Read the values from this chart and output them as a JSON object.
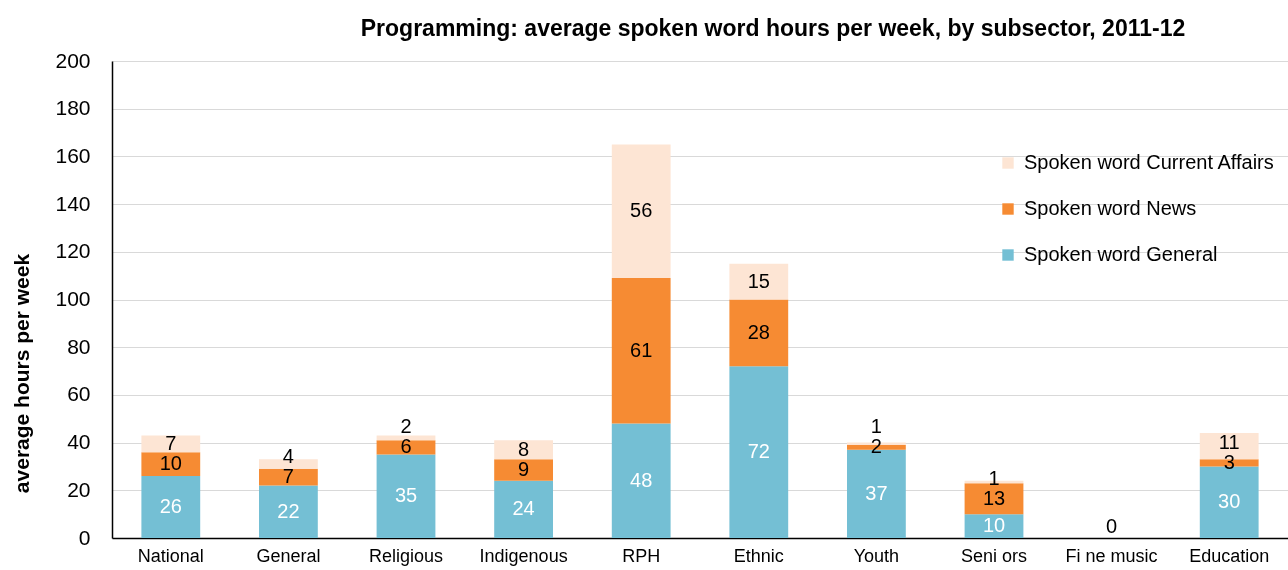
{
  "chart_data": {
    "type": "bar",
    "title": "Programming: average spoken word hours per week, by subsector, 2011-12",
    "ylabel": "average hours per week",
    "categories": [
      "National",
      "General",
      "Religious",
      "Indigenous",
      "RPH",
      "Ethnic",
      "Youth",
      "Seni ors",
      "Fi ne music",
      "Education"
    ],
    "stacked": true,
    "series": [
      {
        "name": "Spoken word General",
        "color": "#74bfd4",
        "values": [
          26,
          22,
          35,
          24,
          48,
          72,
          37,
          10,
          0,
          30
        ],
        "value_labels": [
          "26",
          "22",
          "35",
          "24",
          "48",
          "72",
          "37",
          "10",
          "0",
          "30"
        ]
      },
      {
        "name": "Spoken word News",
        "color": "#f68b33",
        "values": [
          10,
          7,
          6,
          9,
          61,
          28,
          2,
          13,
          0,
          3
        ],
        "value_labels": [
          "10",
          "7",
          "6",
          "9",
          "61",
          "28",
          "2",
          "13",
          null,
          "3"
        ]
      },
      {
        "name": "Spoken word Current Affairs",
        "color": "#fde5d4",
        "values": [
          7,
          4,
          2,
          8,
          56,
          15,
          1,
          1,
          0,
          11
        ],
        "value_labels": [
          "7",
          "4",
          "2",
          "8",
          "56",
          "15",
          "1",
          "1",
          null,
          "11"
        ]
      }
    ],
    "ylim": [
      0,
      200
    ],
    "yticks": [
      0,
      20,
      40,
      60,
      80,
      100,
      120,
      140,
      160,
      180,
      200
    ],
    "grid": "y",
    "legend": "top right"
  }
}
